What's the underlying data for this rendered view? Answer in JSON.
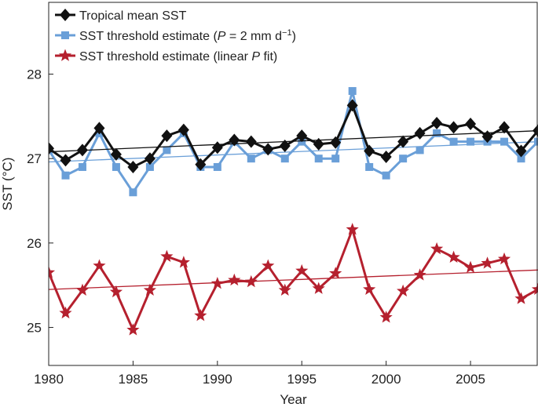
{
  "chart_data": {
    "type": "line",
    "title": "",
    "xlabel": "Year",
    "ylabel": "SST (°C)",
    "xlim": [
      1980,
      2009
    ],
    "ylim": [
      24.55,
      28.85
    ],
    "xticks": [
      1980,
      1985,
      1990,
      1995,
      2000,
      2005
    ],
    "yticks": [
      25,
      26,
      27,
      28
    ],
    "xtick_labels": [
      "1980",
      "1985",
      "1990",
      "1995",
      "2000",
      "2005"
    ],
    "ytick_labels": [
      "25",
      "26",
      "27",
      "28"
    ],
    "grid": false,
    "legend_position": "top-left",
    "x": [
      1980,
      1981,
      1982,
      1983,
      1984,
      1985,
      1986,
      1987,
      1988,
      1989,
      1990,
      1991,
      1992,
      1993,
      1994,
      1995,
      1996,
      1997,
      1998,
      1999,
      2000,
      2001,
      2002,
      2003,
      2004,
      2005,
      2006,
      2007,
      2008,
      2009
    ],
    "series": [
      {
        "name": "Tropical mean SST",
        "legend_label": [
          "Tropical mean SST"
        ],
        "color": "#111111",
        "marker": "diamond",
        "values": [
          27.12,
          26.98,
          27.1,
          27.36,
          27.05,
          26.9,
          27.0,
          27.27,
          27.34,
          26.93,
          27.13,
          27.22,
          27.2,
          27.11,
          27.15,
          27.27,
          27.17,
          27.19,
          27.63,
          27.09,
          27.02,
          27.2,
          27.3,
          27.42,
          27.37,
          27.41,
          27.26,
          27.37,
          27.09,
          27.33
        ],
        "trend": [
          27.08,
          27.33
        ]
      },
      {
        "name": "SST threshold estimate (P = 2 mm d−1)",
        "legend_label": [
          "SST threshold estimate (",
          "P",
          " = 2 mm d",
          "−1",
          ")"
        ],
        "color": "#6a9fd8",
        "marker": "square",
        "values": [
          27.1,
          26.8,
          26.9,
          27.3,
          26.9,
          26.6,
          26.9,
          27.1,
          27.3,
          26.9,
          26.9,
          27.2,
          27.0,
          27.1,
          27.0,
          27.2,
          27.0,
          27.0,
          27.8,
          26.9,
          26.8,
          27.0,
          27.1,
          27.3,
          27.2,
          27.2,
          27.2,
          27.2,
          27.0,
          27.2
        ],
        "trend": [
          26.96,
          27.2
        ]
      },
      {
        "name": "SST threshold estimate (linear P fit)",
        "legend_label": [
          "SST threshold estimate (linear ",
          "P",
          " fit)"
        ],
        "color": "#b5202e",
        "marker": "star",
        "values": [
          25.65,
          25.17,
          25.44,
          25.73,
          25.42,
          24.97,
          25.44,
          25.84,
          25.77,
          25.14,
          25.52,
          25.56,
          25.54,
          25.73,
          25.44,
          25.67,
          25.46,
          25.64,
          26.16,
          25.45,
          25.12,
          25.43,
          25.62,
          25.93,
          25.83,
          25.71,
          25.76,
          25.81,
          25.34,
          25.45
        ],
        "trend": [
          25.45,
          25.68
        ]
      }
    ]
  }
}
